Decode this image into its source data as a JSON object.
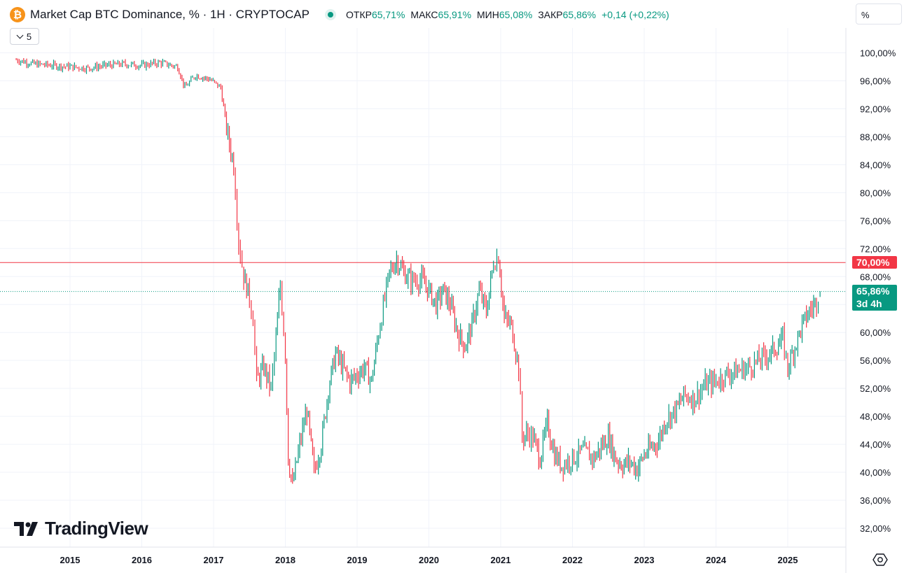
{
  "header": {
    "coin_glyph": "₿",
    "title": "Market Cap BTC Dominance, % · 1H · CRYPTOCAP",
    "ohlc": {
      "open_label": "ОТКР",
      "open_value": "65,71%",
      "high_label": "МАКС",
      "high_value": "65,91%",
      "low_label": "МИН",
      "low_value": "65,08%",
      "close_label": "ЗАКР",
      "close_value": "65,86%",
      "change": "+0,14 (+0,22%)"
    },
    "indicator_toggle": "5",
    "price_unit": "%"
  },
  "branding": {
    "logo_text": "TradingView",
    "settings_icon": "gear-icon"
  },
  "chart_data": {
    "type": "bar",
    "ylim": [
      30,
      102
    ],
    "y_ticks": [
      32,
      36,
      40,
      44,
      48,
      52,
      56,
      60,
      64,
      68,
      72,
      76,
      80,
      84,
      88,
      92,
      96,
      100
    ],
    "y_tick_labels": [
      "32,00%",
      "36,00%",
      "40,00%",
      "44,00%",
      "48,00%",
      "52,00%",
      "56,00%",
      "60,00%",
      "64,00%",
      "68,00%",
      "72,00%",
      "76,00%",
      "80,00%",
      "84,00%",
      "88,00%",
      "92,00%",
      "96,00%",
      "100,00%"
    ],
    "x_ticks": [
      2015,
      2016,
      2017,
      2018,
      2019,
      2020,
      2021,
      2022,
      2023,
      2024,
      2025
    ],
    "xlim": [
      2014.15,
      2025.9
    ],
    "grid": true,
    "up_color": "#089981",
    "down_color": "#f23645",
    "series": [
      {
        "x": [
          2014.25,
          2014.5,
          2014.75,
          2015.0,
          2015.25,
          2015.5,
          2015.75,
          2016.0,
          2016.25,
          2016.5,
          2016.6,
          2016.75,
          2016.95,
          2017.1,
          2017.2,
          2017.28,
          2017.35,
          2017.42,
          2017.5,
          2017.55,
          2017.6,
          2017.7,
          2017.8,
          2017.87,
          2017.93,
          2018.0,
          2018.04,
          2018.1,
          2018.2,
          2018.3,
          2018.4,
          2018.5,
          2018.6,
          2018.7,
          2018.8,
          2018.9,
          2019.0,
          2019.1,
          2019.2,
          2019.3,
          2019.45,
          2019.55,
          2019.65,
          2019.75,
          2019.9,
          2020.0,
          2020.1,
          2020.2,
          2020.3,
          2020.4,
          2020.5,
          2020.6,
          2020.7,
          2020.8,
          2020.9,
          2020.97,
          2021.05,
          2021.15,
          2021.25,
          2021.3,
          2021.38,
          2021.45,
          2021.55,
          2021.65,
          2021.75,
          2021.85,
          2022.0,
          2022.15,
          2022.3,
          2022.42,
          2022.5,
          2022.6,
          2022.7,
          2022.8,
          2022.9,
          2023.0,
          2023.1,
          2023.2,
          2023.3,
          2023.45,
          2023.55,
          2023.7,
          2023.85,
          2024.0,
          2024.15,
          2024.3,
          2024.45,
          2024.6,
          2024.75,
          2024.85,
          2024.93,
          2025.0,
          2025.1,
          2025.2,
          2025.3,
          2025.4,
          2025.45
        ],
        "values": [
          99.0,
          98.4,
          98.2,
          98.0,
          97.8,
          98.2,
          98.4,
          98.2,
          98.6,
          98.0,
          95.0,
          96.8,
          96.2,
          95.0,
          88.0,
          84.0,
          73.0,
          68.0,
          65.0,
          62.0,
          53.0,
          55.0,
          52.0,
          59.0,
          67.0,
          57.0,
          42.0,
          38.0,
          44.0,
          49.0,
          40.0,
          44.0,
          52.0,
          57.0,
          55.0,
          53.0,
          54.0,
          55.0,
          53.0,
          60.0,
          68.5,
          70.5,
          68.5,
          67.5,
          67.5,
          66.0,
          64.0,
          66.0,
          64.0,
          60.0,
          58.0,
          61.0,
          66.0,
          63.0,
          70.0,
          71.0,
          62.0,
          61.0,
          55.0,
          45.0,
          45.5,
          45.0,
          42.0,
          47.0,
          42.5,
          41.0,
          42.0,
          43.0,
          42.0,
          44.0,
          45.0,
          42.0,
          41.0,
          41.5,
          40.5,
          42.5,
          43.5,
          44.5,
          47.5,
          49.0,
          51.0,
          50.5,
          52.5,
          53.0,
          54.0,
          54.5,
          55.0,
          56.0,
          57.0,
          58.0,
          59.0,
          55.0,
          58.0,
          61.0,
          63.0,
          64.5,
          65.86
        ]
      }
    ],
    "reference_lines": [
      {
        "value": 70.0,
        "label": "70,00%",
        "color": "#f23645"
      }
    ],
    "last_price": {
      "value": 65.86,
      "label": "65,86%",
      "countdown": "3d 4h",
      "color": "#089981"
    }
  }
}
